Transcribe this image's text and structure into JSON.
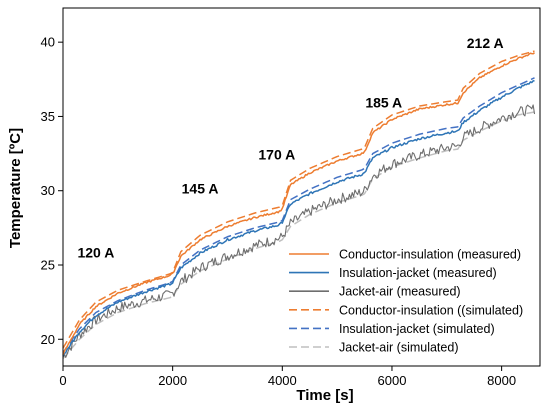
{
  "chart_data": {
    "type": "line",
    "xlabel": "Time [s]",
    "ylabel": "Temperature [ºC]",
    "xlim": [
      0,
      8700
    ],
    "ylim": [
      18.2,
      42.3
    ],
    "xticks": [
      0,
      2000,
      4000,
      6000,
      8000
    ],
    "yticks": [
      20,
      25,
      30,
      35,
      40
    ],
    "grid": false,
    "legend_position": "bottom-right",
    "annotations": [
      {
        "text": "120 A",
        "x": 600,
        "y": 25.5
      },
      {
        "text": "145 A",
        "x": 2500,
        "y": 29.8
      },
      {
        "text": "170 A",
        "x": 3900,
        "y": 32.1
      },
      {
        "text": "185 A",
        "x": 5850,
        "y": 35.6
      },
      {
        "text": "212 A",
        "x": 7700,
        "y": 39.6
      }
    ],
    "series": [
      {
        "name": "Conductor-insulation (measured)",
        "color": "#ED7D31",
        "dash": "solid",
        "points": [
          [
            0,
            19.0
          ],
          [
            300,
            21.0
          ],
          [
            600,
            22.2
          ],
          [
            1000,
            23.1
          ],
          [
            1500,
            23.8
          ],
          [
            1950,
            24.3
          ],
          [
            2000,
            24.4
          ],
          [
            2150,
            25.6
          ],
          [
            2500,
            26.7
          ],
          [
            3000,
            27.6
          ],
          [
            3500,
            28.2
          ],
          [
            3950,
            28.6
          ],
          [
            4000,
            28.8
          ],
          [
            4150,
            30.4
          ],
          [
            4500,
            31.2
          ],
          [
            5000,
            32.0
          ],
          [
            5450,
            32.5
          ],
          [
            5500,
            32.6
          ],
          [
            5650,
            33.9
          ],
          [
            6000,
            34.8
          ],
          [
            6500,
            35.5
          ],
          [
            7000,
            35.8
          ],
          [
            7200,
            35.9
          ],
          [
            7300,
            36.6
          ],
          [
            7600,
            37.6
          ],
          [
            8000,
            38.4
          ],
          [
            8300,
            38.9
          ],
          [
            8600,
            39.3
          ]
        ]
      },
      {
        "name": "Insulation-jacket (measured)",
        "color": "#2E75B6",
        "dash": "solid",
        "points": [
          [
            0,
            18.9
          ],
          [
            300,
            20.5
          ],
          [
            600,
            21.6
          ],
          [
            1000,
            22.5
          ],
          [
            1500,
            23.2
          ],
          [
            1950,
            23.7
          ],
          [
            2000,
            23.8
          ],
          [
            2150,
            24.8
          ],
          [
            2500,
            25.8
          ],
          [
            3000,
            26.7
          ],
          [
            3500,
            27.3
          ],
          [
            3950,
            27.7
          ],
          [
            4000,
            27.9
          ],
          [
            4150,
            29.1
          ],
          [
            4500,
            29.8
          ],
          [
            5000,
            30.6
          ],
          [
            5450,
            31.1
          ],
          [
            5500,
            31.2
          ],
          [
            5650,
            32.2
          ],
          [
            6000,
            32.9
          ],
          [
            6500,
            33.5
          ],
          [
            7000,
            33.9
          ],
          [
            7200,
            34.0
          ],
          [
            7300,
            34.6
          ],
          [
            7600,
            35.4
          ],
          [
            8000,
            36.3
          ],
          [
            8300,
            36.9
          ],
          [
            8600,
            37.4
          ]
        ]
      },
      {
        "name": "Jacket-air (measured)",
        "color": "#6E6E6E",
        "dash": "solid",
        "points": [
          [
            0,
            18.8
          ],
          [
            300,
            20.3
          ],
          [
            600,
            21.3
          ],
          [
            1000,
            22.1
          ],
          [
            1500,
            22.6
          ],
          [
            1950,
            23.0
          ],
          [
            2000,
            23.1
          ],
          [
            2150,
            23.9
          ],
          [
            2500,
            24.8
          ],
          [
            3000,
            25.6
          ],
          [
            3500,
            26.3
          ],
          [
            3950,
            26.8
          ],
          [
            4000,
            26.9
          ],
          [
            4150,
            27.8
          ],
          [
            4500,
            28.6
          ],
          [
            5000,
            29.4
          ],
          [
            5450,
            29.9
          ],
          [
            5500,
            30.0
          ],
          [
            5650,
            31.0
          ],
          [
            6000,
            31.8
          ],
          [
            6500,
            32.4
          ],
          [
            7000,
            32.9
          ],
          [
            7200,
            33.0
          ],
          [
            7300,
            33.6
          ],
          [
            7600,
            34.2
          ],
          [
            8000,
            34.9
          ],
          [
            8300,
            35.3
          ],
          [
            8600,
            35.5
          ]
        ]
      },
      {
        "name": "Conductor-insulation ((simulated)",
        "color": "#ED7D31",
        "dash": "dashed",
        "points": [
          [
            0,
            19.4
          ],
          [
            300,
            21.3
          ],
          [
            600,
            22.5
          ],
          [
            1000,
            23.3
          ],
          [
            1500,
            23.9
          ],
          [
            1950,
            24.4
          ],
          [
            2000,
            24.5
          ],
          [
            2150,
            25.9
          ],
          [
            2500,
            27.0
          ],
          [
            3000,
            27.9
          ],
          [
            3500,
            28.5
          ],
          [
            3950,
            28.9
          ],
          [
            4000,
            29.0
          ],
          [
            4150,
            30.7
          ],
          [
            4500,
            31.5
          ],
          [
            5000,
            32.3
          ],
          [
            5450,
            32.8
          ],
          [
            5500,
            32.9
          ],
          [
            5650,
            34.2
          ],
          [
            6000,
            35.1
          ],
          [
            6500,
            35.7
          ],
          [
            7000,
            36.0
          ],
          [
            7200,
            36.1
          ],
          [
            7300,
            36.9
          ],
          [
            7600,
            37.9
          ],
          [
            8000,
            38.7
          ],
          [
            8300,
            39.1
          ],
          [
            8600,
            39.4
          ]
        ]
      },
      {
        "name": "Insulation-jacket (simulated)",
        "color": "#4472C4",
        "dash": "dashed",
        "points": [
          [
            0,
            19.1
          ],
          [
            300,
            20.7
          ],
          [
            600,
            21.8
          ],
          [
            1000,
            22.6
          ],
          [
            1500,
            23.3
          ],
          [
            1950,
            23.8
          ],
          [
            2000,
            23.9
          ],
          [
            2150,
            25.0
          ],
          [
            2500,
            26.0
          ],
          [
            3000,
            26.9
          ],
          [
            3500,
            27.5
          ],
          [
            3950,
            27.9
          ],
          [
            4000,
            28.0
          ],
          [
            4150,
            29.4
          ],
          [
            4500,
            30.1
          ],
          [
            5000,
            30.9
          ],
          [
            5450,
            31.4
          ],
          [
            5500,
            31.5
          ],
          [
            5650,
            32.5
          ],
          [
            6000,
            33.2
          ],
          [
            6500,
            33.8
          ],
          [
            7000,
            34.2
          ],
          [
            7200,
            34.3
          ],
          [
            7300,
            34.9
          ],
          [
            7600,
            35.7
          ],
          [
            8000,
            36.6
          ],
          [
            8300,
            37.1
          ],
          [
            8600,
            37.6
          ]
        ]
      },
      {
        "name": "Jacket-air (simulated)",
        "color": "#BFBFBF",
        "dash": "dashed",
        "points": [
          [
            0,
            18.7
          ],
          [
            300,
            20.0
          ],
          [
            600,
            21.0
          ],
          [
            1000,
            21.8
          ],
          [
            1500,
            22.4
          ],
          [
            1950,
            22.8
          ],
          [
            2000,
            22.9
          ],
          [
            2150,
            23.7
          ],
          [
            2500,
            24.6
          ],
          [
            3000,
            25.4
          ],
          [
            3500,
            26.1
          ],
          [
            3950,
            26.6
          ],
          [
            4000,
            26.7
          ],
          [
            4150,
            27.6
          ],
          [
            4500,
            28.4
          ],
          [
            5000,
            29.2
          ],
          [
            5450,
            29.7
          ],
          [
            5500,
            29.8
          ],
          [
            5650,
            30.8
          ],
          [
            6000,
            31.6
          ],
          [
            6500,
            32.2
          ],
          [
            7000,
            32.7
          ],
          [
            7200,
            32.8
          ],
          [
            7300,
            33.4
          ],
          [
            7600,
            34.0
          ],
          [
            8000,
            34.7
          ],
          [
            8300,
            35.1
          ],
          [
            8600,
            35.3
          ]
        ]
      }
    ]
  }
}
